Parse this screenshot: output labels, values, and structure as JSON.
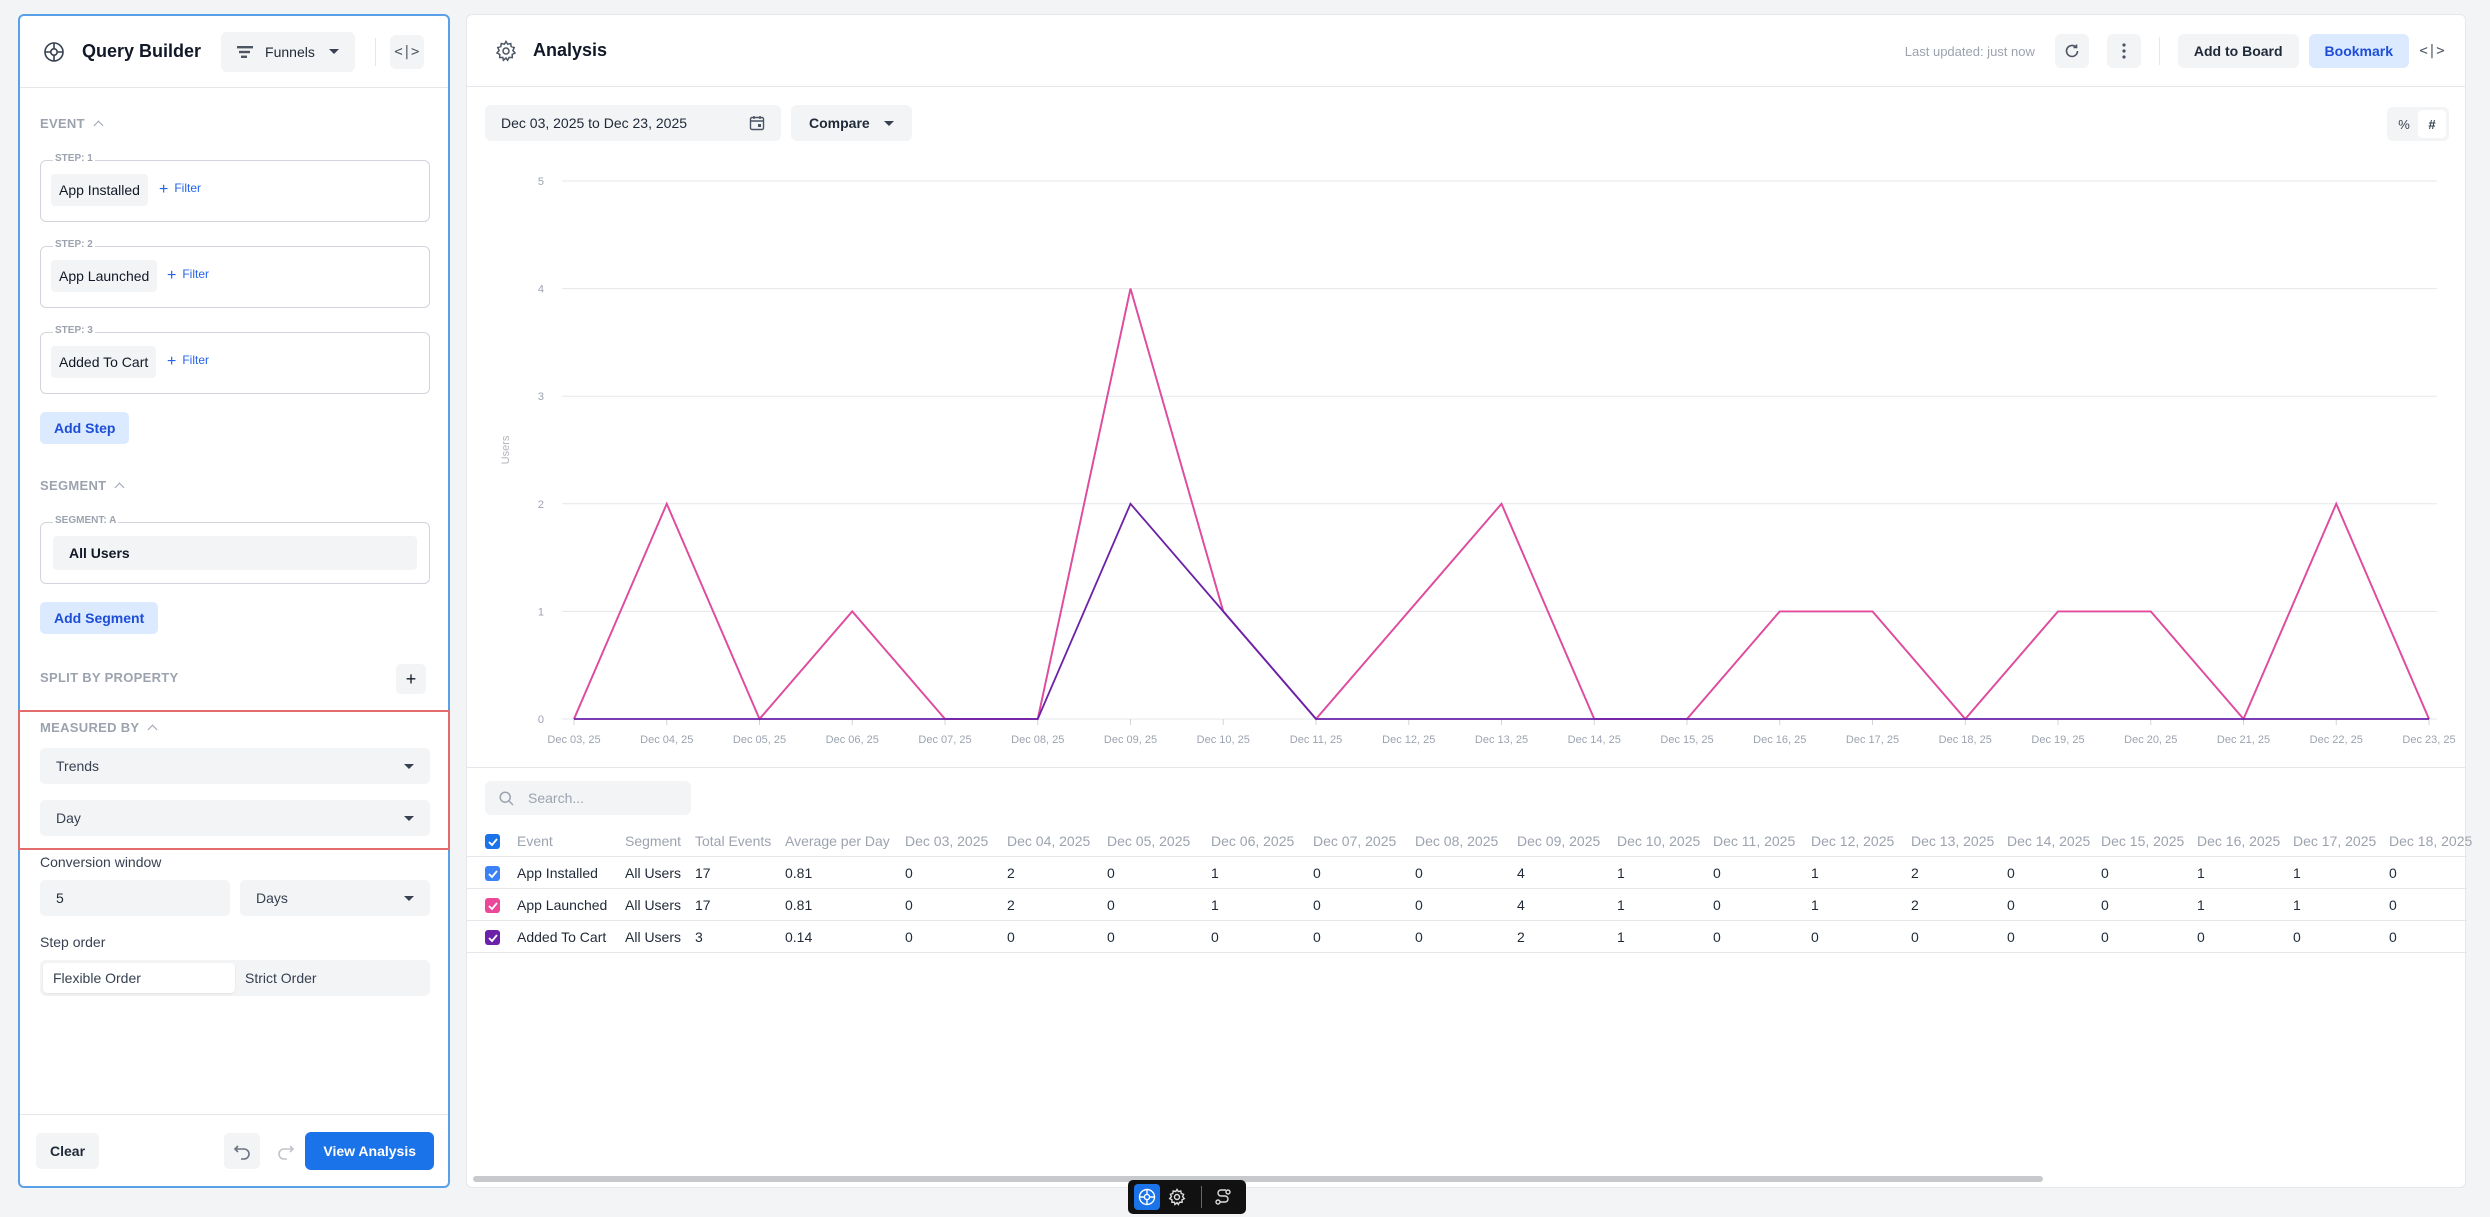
{
  "query_builder": {
    "title": "Query Builder",
    "mode_selector": "Funnels",
    "event_section": "EVENT",
    "steps": [
      {
        "label": "STEP: 1",
        "event": "App Installed",
        "filter": "Filter"
      },
      {
        "label": "STEP: 2",
        "event": "App Launched",
        "filter": "Filter"
      },
      {
        "label": "STEP: 3",
        "event": "Added To Cart",
        "filter": "Filter"
      }
    ],
    "add_step": "Add Step",
    "segment_section": "SEGMENT",
    "segment_label": "SEGMENT: A",
    "segment_value": "All Users",
    "add_segment": "Add Segment",
    "split_by": "SPLIT BY PROPERTY",
    "measured_by": "MEASURED BY",
    "measure_type": "Trends",
    "interval": "Day",
    "conversion_window_label": "Conversion window",
    "conversion_window_value": "5",
    "conversion_window_unit": "Days",
    "step_order_label": "Step order",
    "step_order_options": [
      "Flexible Order",
      "Strict Order"
    ],
    "clear": "Clear",
    "view_analysis": "View Analysis"
  },
  "analysis": {
    "title": "Analysis",
    "last_updated": "Last updated: just now",
    "add_to_board": "Add to Board",
    "bookmark": "Bookmark",
    "date_range": "Dec 03, 2025 to Dec 23, 2025",
    "compare": "Compare",
    "pct_label": "%",
    "count_label": "#",
    "search_placeholder": "Search..."
  },
  "chart_data": {
    "type": "line",
    "x": [
      "Dec 03, 25",
      "Dec 04, 25",
      "Dec 05, 25",
      "Dec 06, 25",
      "Dec 07, 25",
      "Dec 08, 25",
      "Dec 09, 25",
      "Dec 10, 25",
      "Dec 11, 25",
      "Dec 12, 25",
      "Dec 13, 25",
      "Dec 14, 25",
      "Dec 15, 25",
      "Dec 16, 25",
      "Dec 17, 25",
      "Dec 18, 25",
      "Dec 19, 25",
      "Dec 20, 25",
      "Dec 21, 25",
      "Dec 22, 25",
      "Dec 23, 25"
    ],
    "ylabel": "Users",
    "yticks": [
      0,
      1,
      2,
      3,
      4,
      5
    ],
    "ylim": [
      0,
      5
    ],
    "grid": true,
    "series": [
      {
        "color": "#3b82f6",
        "values": [
          0,
          2,
          0,
          1,
          0,
          0,
          4,
          1,
          0,
          1,
          2,
          0,
          0,
          1,
          1,
          0,
          1,
          1,
          0,
          2,
          0
        ]
      },
      {
        "color": "#ec4899",
        "values": [
          0,
          2,
          0,
          1,
          0,
          0,
          4,
          1,
          0,
          1,
          2,
          0,
          0,
          1,
          1,
          0,
          1,
          1,
          0,
          2,
          0
        ]
      },
      {
        "color": "#6b21a8",
        "values": [
          0,
          0,
          0,
          0,
          0,
          0,
          2,
          1,
          0,
          0,
          0,
          0,
          0,
          0,
          0,
          0,
          0,
          0,
          0,
          0,
          0
        ]
      }
    ]
  },
  "table": {
    "headers": [
      "Event",
      "Segment",
      "Total Events",
      "Average per Day",
      "Dec 03, 2025",
      "Dec 04, 2025",
      "Dec 05, 2025",
      "Dec 06, 2025",
      "Dec 07, 2025",
      "Dec 08, 2025",
      "Dec 09, 2025",
      "Dec 10, 2025",
      "Dec 11, 2025",
      "Dec 12, 2025",
      "Dec 13, 2025",
      "Dec 14, 2025",
      "Dec 15, 2025",
      "Dec 16, 2025",
      "Dec 17, 2025",
      "Dec 18, 2025"
    ],
    "rows": [
      {
        "color": "#3b82f6",
        "cells": [
          "App Installed",
          "All Users",
          "17",
          "0.81",
          "0",
          "2",
          "0",
          "1",
          "0",
          "0",
          "4",
          "1",
          "0",
          "1",
          "2",
          "0",
          "0",
          "1",
          "1",
          "0"
        ]
      },
      {
        "color": "#ec4899",
        "cells": [
          "App Launched",
          "All Users",
          "17",
          "0.81",
          "0",
          "2",
          "0",
          "1",
          "0",
          "0",
          "4",
          "1",
          "0",
          "1",
          "2",
          "0",
          "0",
          "1",
          "1",
          "0"
        ]
      },
      {
        "color": "#6b21a8",
        "cells": [
          "Added To Cart",
          "All Users",
          "3",
          "0.14",
          "0",
          "0",
          "0",
          "0",
          "0",
          "0",
          "2",
          "1",
          "0",
          "0",
          "0",
          "0",
          "0",
          "0",
          "0",
          "0"
        ]
      }
    ]
  }
}
